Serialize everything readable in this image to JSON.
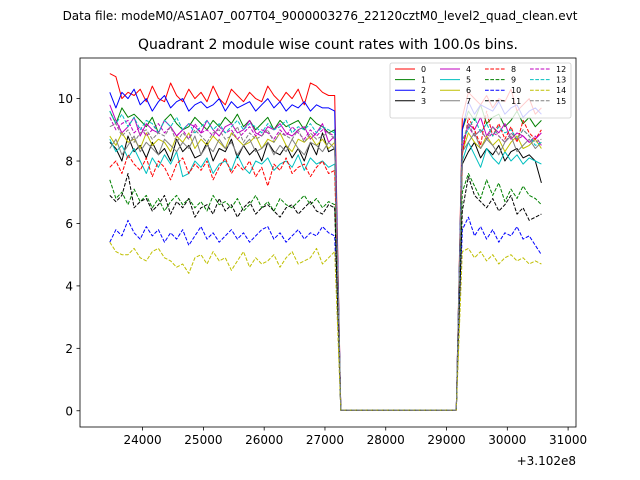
{
  "figure": {
    "suptitle": "Data file: modeM0/AS1A07_007T04_9000003276_22120cztM0_level2_quad_clean.evt",
    "title": "Quadrant 2 module wise count rates with 100.0s bins."
  },
  "chart_data": {
    "type": "line",
    "title": "Quadrant 2 module wise count rates with 100.0s bins.",
    "xlabel": "",
    "ylabel": "",
    "x_offset_label": "+3.102e8",
    "x_offset": 310200000,
    "xlim": [
      22970,
      31130
    ],
    "ylim": [
      -0.52,
      11.3
    ],
    "xticks": [
      24000,
      25000,
      26000,
      27000,
      28000,
      29000,
      30000,
      31000
    ],
    "xtick_labels": [
      "24000",
      "25000",
      "26000",
      "27000",
      "28000",
      "29000",
      "30000",
      "31000"
    ],
    "yticks": [
      0,
      2,
      4,
      6,
      8,
      10
    ],
    "ytick_labels": [
      "0",
      "2",
      "4",
      "6",
      "8",
      "10"
    ],
    "grid": false,
    "legend": {
      "placement": "top-right",
      "columns": 4
    },
    "segment1_x": {
      "start": 23460,
      "step": 100,
      "count": 38
    },
    "gap_x": [
      27260,
      27360,
      27460,
      27560,
      27660,
      27760,
      27860,
      27960,
      28060,
      28160,
      28260,
      28360,
      28460,
      28560,
      28660,
      28760,
      28860,
      28960,
      29060,
      29160
    ],
    "segment2_x": {
      "start": 29260,
      "step": 100,
      "count": 14
    },
    "gap_value": 0.02,
    "series": [
      {
        "name": "0",
        "color": "#ff0000",
        "dash": "solid",
        "seg1": [
          10.8,
          10.7,
          10.0,
          10.2,
          10.1,
          10.3,
          9.9,
          10.4,
          10.0,
          9.9,
          10.5,
          10.1,
          9.9,
          10.3,
          10.0,
          10.2,
          9.9,
          10.4,
          10.0,
          9.8,
          10.3,
          10.1,
          9.9,
          10.2,
          10.0,
          9.9,
          10.4,
          10.1,
          9.9,
          10.2,
          10.0,
          10.3,
          9.8,
          10.5,
          10.4,
          10.2,
          10.1,
          10.1
        ],
        "seg2": [
          9.4,
          10.2,
          10.0,
          9.8,
          10.1,
          9.7,
          10.0,
          9.9,
          10.3,
          9.6,
          9.8,
          10.0,
          9.5,
          9.7
        ]
      },
      {
        "name": "1",
        "color": "#008000",
        "dash": "solid",
        "seg1": [
          9.6,
          9.2,
          9.7,
          9.4,
          9.5,
          9.3,
          9.1,
          9.4,
          8.9,
          9.3,
          9.5,
          9.2,
          9.0,
          9.1,
          9.4,
          9.2,
          9.0,
          9.3,
          9.1,
          9.4,
          9.2,
          9.5,
          9.1,
          9.3,
          9.0,
          9.2,
          9.4,
          9.0,
          9.3,
          9.1,
          9.2,
          9.3,
          9.0,
          9.4,
          9.2,
          9.1,
          8.9,
          9.0
        ],
        "seg2": [
          9.0,
          9.6,
          9.3,
          9.8,
          9.2,
          9.4,
          9.5,
          9.1,
          9.3,
          9.6,
          9.2,
          9.4,
          9.1,
          9.3
        ]
      },
      {
        "name": "2",
        "color": "#0000ff",
        "dash": "solid",
        "seg1": [
          10.2,
          9.7,
          10.2,
          10.0,
          10.3,
          9.8,
          10.0,
          9.6,
          9.9,
          10.1,
          9.7,
          9.9,
          10.0,
          9.6,
          9.8,
          9.9,
          9.7,
          9.8,
          10.0,
          9.6,
          9.9,
          9.7,
          9.8,
          9.9,
          9.6,
          9.8,
          10.0,
          9.7,
          9.9,
          9.6,
          9.8,
          9.7,
          9.9,
          9.6,
          9.8,
          9.7,
          9.7,
          9.6
        ],
        "seg2": [
          9.0,
          9.9,
          9.5,
          9.8,
          9.7,
          9.6,
          9.9,
          9.5,
          9.7,
          9.8,
          9.4,
          9.6,
          9.7,
          9.5
        ]
      },
      {
        "name": "3",
        "color": "#000000",
        "dash": "solid",
        "seg1": [
          8.6,
          8.4,
          8.0,
          8.8,
          8.3,
          8.5,
          8.1,
          8.6,
          8.2,
          8.4,
          8.0,
          8.7,
          8.3,
          8.5,
          8.1,
          8.2,
          8.6,
          8.0,
          8.4,
          8.3,
          8.7,
          8.1,
          8.5,
          8.2,
          8.4,
          8.0,
          8.6,
          8.3,
          8.2,
          8.5,
          8.1,
          8.4,
          8.0,
          8.6,
          8.2,
          8.9,
          8.3,
          8.4
        ],
        "seg2": [
          7.9,
          8.3,
          8.6,
          8.1,
          8.4,
          8.2,
          8.5,
          8.0,
          8.3,
          8.4,
          8.1,
          8.2,
          8.0,
          7.3
        ]
      },
      {
        "name": "4",
        "color": "#bf00bf",
        "dash": "solid",
        "seg1": [
          9.8,
          9.3,
          8.9,
          9.1,
          9.4,
          8.8,
          9.2,
          9.0,
          8.9,
          9.3,
          9.1,
          8.8,
          9.0,
          9.2,
          9.1,
          8.9,
          9.3,
          9.0,
          8.8,
          9.1,
          9.2,
          8.9,
          9.0,
          9.3,
          8.9,
          8.8,
          9.1,
          9.0,
          9.2,
          8.9,
          8.8,
          9.0,
          9.1,
          8.7,
          8.9,
          9.2,
          8.6,
          8.8
        ],
        "seg2": [
          8.4,
          9.2,
          9.0,
          9.4,
          8.8,
          9.1,
          8.9,
          9.2,
          8.7,
          8.9,
          8.8,
          8.6,
          8.7,
          8.9
        ]
      },
      {
        "name": "5",
        "color": "#00bfbf",
        "dash": "solid",
        "seg1": [
          8.7,
          8.3,
          8.5,
          8.1,
          8.4,
          8.0,
          7.6,
          8.1,
          7.8,
          8.2,
          7.9,
          8.3,
          7.5,
          7.6,
          8.0,
          7.8,
          8.1,
          7.6,
          7.9,
          8.0,
          7.7,
          8.2,
          7.8,
          7.6,
          8.0,
          7.9,
          8.1,
          7.7,
          7.9,
          8.0,
          7.8,
          8.2,
          7.7,
          8.1,
          7.9,
          8.0,
          7.8,
          7.9
        ],
        "seg2": [
          8.0,
          8.6,
          8.2,
          7.8,
          8.4,
          8.1,
          7.9,
          8.3,
          8.0,
          8.2,
          7.9,
          8.1,
          8.0,
          7.9
        ]
      },
      {
        "name": "6",
        "color": "#bfbf00",
        "dash": "solid",
        "seg1": [
          8.8,
          8.5,
          8.9,
          8.6,
          8.7,
          8.4,
          8.9,
          8.5,
          8.7,
          8.6,
          8.3,
          8.8,
          8.6,
          8.9,
          8.4,
          8.7,
          8.5,
          8.8,
          8.6,
          8.4,
          8.9,
          8.7,
          8.5,
          8.6,
          8.8,
          8.4,
          8.7,
          8.6,
          8.9,
          8.5,
          8.3,
          8.7,
          8.6,
          8.8,
          8.5,
          8.7,
          8.4,
          8.6
        ],
        "seg2": [
          8.3,
          8.9,
          8.6,
          8.4,
          8.8,
          8.5,
          8.7,
          8.3,
          8.6,
          8.8,
          8.4,
          8.5,
          8.7,
          8.4
        ]
      },
      {
        "name": "7",
        "color": "#808080",
        "dash": "solid",
        "seg1": [
          8.4,
          8.7,
          8.2,
          8.5,
          8.8,
          8.3,
          8.6,
          8.4,
          8.2,
          8.7,
          8.5,
          8.3,
          8.6,
          8.4,
          8.8,
          8.2,
          8.5,
          8.3,
          8.7,
          8.4,
          8.6,
          8.2,
          8.5,
          8.7,
          8.3,
          8.4,
          8.6,
          8.2,
          8.5,
          8.3,
          8.7,
          8.4,
          8.2,
          8.6,
          8.5,
          8.3,
          8.6,
          8.4
        ],
        "seg2": [
          8.3,
          8.6,
          8.9,
          8.4,
          8.7,
          8.5,
          8.2,
          8.6,
          8.8,
          8.3,
          8.5,
          8.7,
          8.4,
          8.6
        ]
      },
      {
        "name": "8",
        "color": "#ff0000",
        "dash": "dashed",
        "seg1": [
          7.8,
          8.0,
          7.6,
          8.2,
          7.9,
          7.7,
          8.1,
          7.5,
          8.0,
          7.8,
          7.4,
          7.9,
          8.1,
          7.6,
          7.9,
          7.7,
          8.0,
          7.4,
          7.8,
          8.1,
          7.6,
          7.9,
          7.7,
          8.0,
          7.5,
          7.8,
          7.2,
          7.9,
          7.7,
          8.1,
          7.6,
          7.8,
          7.9,
          7.5,
          7.8,
          8.0,
          7.6,
          7.7
        ],
        "seg2": [
          8.2,
          9.4,
          9.0,
          8.5,
          9.6,
          8.8,
          9.2,
          8.7,
          9.1,
          8.6,
          9.3,
          8.9,
          8.7,
          9.0
        ]
      },
      {
        "name": "9",
        "color": "#008000",
        "dash": "dashed",
        "seg1": [
          7.4,
          6.8,
          7.0,
          6.6,
          7.1,
          6.7,
          6.9,
          6.5,
          6.8,
          6.4,
          6.7,
          6.9,
          6.6,
          6.8,
          6.5,
          6.7,
          6.4,
          6.9,
          6.6,
          6.7,
          6.5,
          6.8,
          6.4,
          6.6,
          6.9,
          6.5,
          6.7,
          6.4,
          6.8,
          6.6,
          6.5,
          6.7,
          6.9,
          6.6,
          6.8,
          6.5,
          6.7,
          6.6
        ],
        "seg2": [
          7.0,
          7.6,
          7.2,
          6.8,
          7.4,
          6.9,
          7.3,
          6.7,
          7.1,
          6.8,
          7.2,
          6.9,
          6.8,
          6.6
        ]
      },
      {
        "name": "10",
        "color": "#0000ff",
        "dash": "dashed",
        "seg1": [
          5.4,
          5.8,
          5.6,
          6.1,
          5.7,
          5.5,
          5.9,
          5.6,
          5.8,
          5.4,
          5.7,
          5.5,
          5.8,
          5.3,
          5.6,
          5.9,
          5.5,
          5.7,
          5.4,
          5.6,
          5.8,
          5.5,
          5.7,
          5.4,
          5.6,
          5.8,
          5.9,
          5.5,
          5.7,
          5.4,
          5.6,
          5.8,
          5.5,
          5.7,
          5.6,
          5.9,
          5.7,
          5.6
        ],
        "seg2": [
          5.8,
          6.2,
          5.6,
          5.9,
          5.5,
          5.8,
          5.4,
          5.7,
          5.6,
          5.9,
          5.5,
          5.6,
          5.3,
          5.0
        ]
      },
      {
        "name": "11",
        "color": "#000000",
        "dash": "dashed",
        "seg1": [
          6.9,
          6.7,
          6.9,
          7.6,
          6.5,
          6.7,
          6.8,
          6.4,
          6.6,
          6.9,
          6.3,
          6.7,
          6.5,
          6.8,
          6.2,
          6.5,
          6.6,
          6.3,
          6.8,
          6.4,
          6.6,
          6.2,
          6.5,
          6.7,
          6.3,
          6.5,
          6.6,
          6.4,
          6.2,
          6.5,
          6.6,
          6.3,
          6.5,
          6.7,
          6.4,
          6.3,
          6.6,
          6.5
        ],
        "seg2": [
          6.4,
          7.5,
          6.9,
          6.7,
          6.5,
          6.8,
          6.4,
          6.6,
          6.9,
          6.3,
          6.5,
          6.1,
          6.2,
          6.3
        ]
      },
      {
        "name": "12",
        "color": "#bf00bf",
        "dash": "dashed",
        "seg1": [
          9.4,
          9.0,
          9.2,
          9.3,
          8.9,
          9.1,
          8.8,
          9.0,
          9.2,
          8.9,
          9.1,
          8.8,
          9.0,
          8.7,
          9.2,
          8.9,
          9.0,
          8.8,
          9.1,
          8.9,
          9.0,
          8.7,
          8.9,
          9.1,
          8.8,
          9.0,
          8.9,
          8.7,
          9.0,
          8.8,
          9.1,
          8.9,
          8.7,
          9.0,
          8.8,
          9.0,
          8.9,
          8.8
        ],
        "seg2": [
          8.6,
          9.1,
          8.8,
          9.0,
          8.7,
          8.9,
          8.8,
          8.6,
          8.9,
          8.7,
          8.8,
          8.6,
          8.8,
          8.5
        ]
      },
      {
        "name": "13",
        "color": "#00bfbf",
        "dash": "dashed",
        "seg1": [
          9.6,
          9.2,
          9.5,
          9.1,
          9.4,
          9.0,
          9.3,
          9.2,
          8.9,
          9.3,
          9.1,
          9.4,
          9.0,
          9.2,
          8.9,
          9.1,
          9.3,
          9.0,
          9.2,
          8.9,
          9.1,
          9.3,
          9.0,
          9.2,
          9.1,
          8.9,
          9.2,
          9.0,
          9.1,
          9.3,
          8.9,
          9.1,
          9.0,
          9.2,
          8.9,
          9.1,
          9.0,
          8.9
        ],
        "seg2": [
          8.7,
          9.0,
          9.4,
          8.9,
          9.2,
          8.8,
          9.1,
          8.9,
          9.0,
          8.7,
          9.0,
          8.8,
          8.5,
          8.6
        ]
      },
      {
        "name": "14",
        "color": "#bfbf00",
        "dash": "dashed",
        "seg1": [
          5.4,
          5.1,
          5.0,
          5.0,
          5.2,
          4.9,
          4.8,
          5.1,
          5.2,
          4.9,
          4.8,
          4.6,
          4.7,
          4.4,
          4.9,
          5.0,
          4.7,
          5.1,
          4.8,
          4.9,
          4.5,
          4.8,
          5.1,
          4.6,
          4.9,
          4.7,
          4.8,
          5.0,
          4.6,
          4.9,
          5.1,
          4.7,
          4.8,
          4.9,
          5.2,
          4.7,
          4.9,
          5.1
        ],
        "seg2": [
          5.1,
          5.2,
          4.9,
          5.1,
          4.8,
          5.0,
          4.7,
          4.9,
          5.0,
          4.8,
          4.9,
          4.7,
          4.8,
          4.7
        ]
      },
      {
        "name": "15",
        "color": "#808080",
        "dash": "dashed",
        "seg1": [
          9.1,
          9.2,
          8.8,
          9.0,
          8.6,
          8.9,
          9.0,
          8.7,
          8.9,
          8.8,
          9.1,
          8.6,
          8.9,
          8.7,
          9.0,
          8.8,
          8.6,
          8.9,
          9.0,
          8.7,
          8.8,
          9.1,
          8.6,
          8.9,
          8.7,
          8.8,
          9.0,
          8.6,
          8.9,
          8.8,
          8.7,
          9.0,
          8.6,
          8.9,
          8.7,
          8.8,
          8.9,
          8.7
        ],
        "seg2": [
          8.6,
          9.2,
          8.8,
          9.0,
          8.7,
          9.1,
          8.8,
          8.6,
          8.9,
          8.7,
          9.0,
          8.8,
          8.6,
          8.7
        ]
      }
    ]
  }
}
